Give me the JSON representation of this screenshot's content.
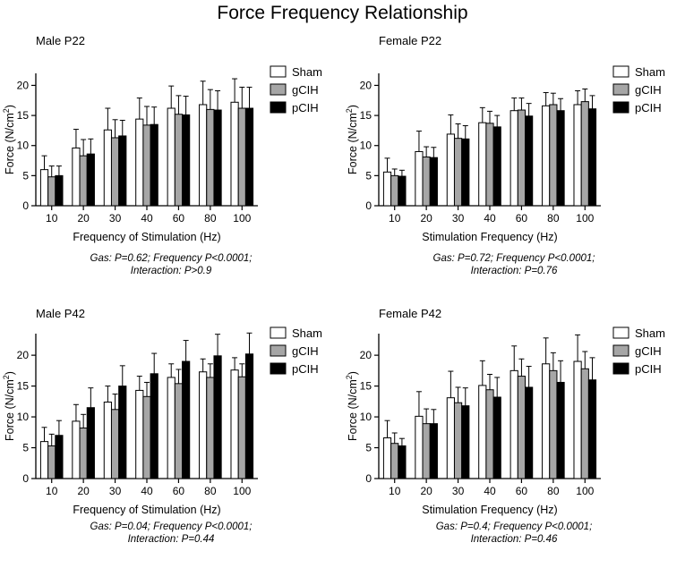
{
  "figure_title": "Force Frequency  Relationship",
  "colors": {
    "Sham": "#ffffff",
    "gCIH": "#a6a6a6",
    "pCIH": "#000000"
  },
  "chart_data": [
    {
      "type": "bar",
      "title": "Male P22",
      "xlabel": "Frequency of Stimulation (Hz)",
      "ylabel": "Force (N/cm",
      "ylabel_sup": "2",
      "ylabel_end": ")",
      "ylim": [
        0,
        22
      ],
      "yticks": [
        0,
        5,
        10,
        15,
        20
      ],
      "categories": [
        "10",
        "20",
        "30",
        "40",
        "60",
        "80",
        "100"
      ],
      "series": [
        {
          "name": "Sham",
          "values": [
            6.0,
            9.6,
            12.6,
            14.4,
            16.2,
            16.8,
            17.2
          ],
          "errors": [
            2.3,
            3.1,
            3.6,
            3.5,
            3.7,
            3.9,
            3.9
          ]
        },
        {
          "name": "gCIH",
          "values": [
            4.8,
            8.3,
            11.3,
            13.4,
            15.2,
            16.0,
            16.2
          ],
          "errors": [
            1.8,
            2.7,
            3.0,
            3.1,
            3.1,
            3.3,
            3.5
          ]
        },
        {
          "name": "pCIH",
          "values": [
            5.0,
            8.6,
            11.6,
            13.5,
            15.1,
            15.9,
            16.2
          ],
          "errors": [
            1.6,
            2.5,
            2.6,
            2.9,
            3.1,
            3.2,
            3.5
          ]
        }
      ],
      "legend": [
        "Sham",
        "gCIH",
        "pCIH"
      ],
      "stats_line1": "Gas: P=0.62; Frequency P<0.0001;",
      "stats_line2": "Interaction: P>0.9"
    },
    {
      "type": "bar",
      "title": "Female P22",
      "xlabel": "Stimulation Frequency (Hz)",
      "ylabel": "Force (N/cm",
      "ylabel_sup": "2",
      "ylabel_end": ")",
      "ylim": [
        0,
        22
      ],
      "yticks": [
        0,
        5,
        10,
        15,
        20
      ],
      "categories": [
        "10",
        "20",
        "30",
        "40",
        "60",
        "80",
        "100"
      ],
      "series": [
        {
          "name": "Sham",
          "values": [
            5.6,
            9.0,
            11.9,
            13.8,
            15.8,
            16.6,
            16.8
          ],
          "errors": [
            2.3,
            3.4,
            3.2,
            2.5,
            2.1,
            2.2,
            2.3
          ]
        },
        {
          "name": "gCIH",
          "values": [
            5.0,
            8.1,
            11.2,
            13.7,
            15.9,
            16.8,
            17.3
          ],
          "errors": [
            1.1,
            1.7,
            2.4,
            2.0,
            2.0,
            1.9,
            2.1
          ]
        },
        {
          "name": "pCIH",
          "values": [
            4.9,
            8.0,
            11.1,
            13.1,
            14.9,
            15.8,
            16.1
          ],
          "errors": [
            1.0,
            1.7,
            2.2,
            1.9,
            2.1,
            2.0,
            2.2
          ]
        }
      ],
      "legend": [
        "Sham",
        "gCIH",
        "pCIH"
      ],
      "stats_line1": "Gas: P=0.72; Frequency P<0.0001;",
      "stats_line2": "Interaction: P=0.76"
    },
    {
      "type": "bar",
      "title": "Male P42",
      "xlabel": "Frequency of Stimulation (Hz)",
      "ylabel": "Force (N/cm",
      "ylabel_sup": "2",
      "ylabel_end": ")",
      "ylim": [
        0,
        23.5
      ],
      "yticks": [
        0,
        5,
        10,
        15,
        20
      ],
      "categories": [
        "10",
        "20",
        "30",
        "40",
        "60",
        "80",
        "100"
      ],
      "series": [
        {
          "name": "Sham",
          "values": [
            6.0,
            9.3,
            12.4,
            14.3,
            16.4,
            17.3,
            17.6
          ],
          "errors": [
            2.3,
            2.7,
            2.6,
            2.3,
            2.2,
            2.1,
            2.0
          ]
        },
        {
          "name": "gCIH",
          "values": [
            5.3,
            8.2,
            11.2,
            13.3,
            15.4,
            16.4,
            16.5
          ],
          "errors": [
            1.9,
            2.2,
            2.5,
            2.3,
            2.3,
            2.2,
            2.1
          ]
        },
        {
          "name": "pCIH",
          "values": [
            7.0,
            11.5,
            15.0,
            17.0,
            19.0,
            19.9,
            20.2
          ],
          "errors": [
            2.4,
            3.2,
            3.3,
            3.3,
            3.4,
            3.5,
            3.4
          ]
        }
      ],
      "legend": [
        "Sham",
        "gCIH",
        "pCIH"
      ],
      "stats_line1": "Gas: P=0.04; Frequency P<0.0001;",
      "stats_line2": "Interaction: P=0.44"
    },
    {
      "type": "bar",
      "title": "Female P42",
      "xlabel": "Stimulation Frequency (Hz)",
      "ylabel": "Force (N/cm",
      "ylabel_sup": "2",
      "ylabel_end": ")",
      "ylim": [
        0,
        23.5
      ],
      "yticks": [
        0,
        5,
        10,
        15,
        20
      ],
      "categories": [
        "10",
        "20",
        "30",
        "40",
        "60",
        "80",
        "100"
      ],
      "series": [
        {
          "name": "Sham",
          "values": [
            6.6,
            10.1,
            13.1,
            15.1,
            17.5,
            18.6,
            19.0
          ],
          "errors": [
            2.8,
            4.0,
            4.3,
            4.0,
            4.0,
            4.2,
            4.3
          ]
        },
        {
          "name": "gCIH",
          "values": [
            5.7,
            8.9,
            12.3,
            14.4,
            16.6,
            17.5,
            17.8
          ],
          "errors": [
            1.7,
            2.4,
            2.5,
            2.5,
            2.8,
            2.9,
            2.8
          ]
        },
        {
          "name": "pCIH",
          "values": [
            5.3,
            8.9,
            11.8,
            13.2,
            14.8,
            15.6,
            16.0
          ],
          "errors": [
            1.2,
            2.3,
            2.9,
            3.2,
            3.4,
            3.5,
            3.6
          ]
        }
      ],
      "legend": [
        "Sham",
        "gCIH",
        "pCIH"
      ],
      "stats_line1": "Gas: P=0.4; Frequency P<0.0001;",
      "stats_line2": "Interaction: P=0.46"
    }
  ]
}
